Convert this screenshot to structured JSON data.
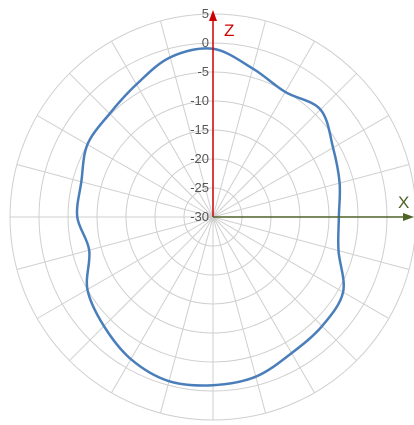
{
  "chart_data": {
    "type": "line",
    "subtype": "polar",
    "radial_axis": {
      "min": -30,
      "max": 5,
      "step": 5,
      "tick_labels": [
        "5",
        "0",
        "-5",
        "-10",
        "-15",
        "-20",
        "-25",
        "-30"
      ],
      "tick_values": [
        5,
        0,
        -5,
        -10,
        -15,
        -20,
        -25,
        -30
      ]
    },
    "angular_axis": {
      "step_deg": 15,
      "zero_direction": "up",
      "rotation": "clockwise"
    },
    "axis_labels": {
      "vertical": "Z",
      "horizontal": "X"
    },
    "grid": true,
    "series": [
      {
        "angles_deg": [
          0,
          15,
          30,
          45,
          60,
          75,
          90,
          105,
          120,
          135,
          150,
          165,
          180,
          195,
          210,
          225,
          240,
          255,
          270,
          285,
          300,
          315,
          330,
          345,
          360
        ],
        "values": [
          -1,
          -3.5,
          -5.1,
          -3.8,
          -6.1,
          -7.4,
          -8.3,
          -7.6,
          -4.1,
          -3.4,
          -2.9,
          -1.5,
          -1.0,
          -0.7,
          -1.7,
          -3.4,
          -5.0,
          -7.9,
          -6.6,
          -6.5,
          -5.0,
          -4.8,
          -3.6,
          -1.5,
          -1
        ]
      }
    ],
    "colors": {
      "series": "#4a7ebb",
      "grid": "#cfcfcf",
      "vertical_axis": "#cc0000",
      "horizontal_axis": "#4f6228"
    }
  }
}
